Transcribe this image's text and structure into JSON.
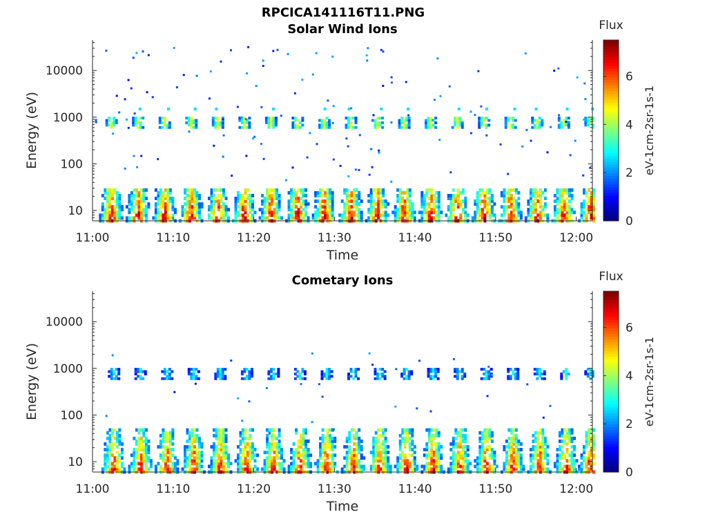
{
  "figure_title": "RPCICA141116T11.PNG",
  "chart_data": [
    {
      "type": "heatmap",
      "title": "Solar Wind Ions",
      "xlabel": "Time",
      "ylabel": "Energy (eV)",
      "x_ticks": [
        "11:00",
        "11:10",
        "11:20",
        "11:30",
        "11:40",
        "11:50",
        "12:00"
      ],
      "y_ticks": [
        "10",
        "100",
        "1000",
        "10000"
      ],
      "y_scale": "log",
      "ylim": [
        6,
        45000
      ],
      "xlim_minutes": [
        0,
        62
      ],
      "colorbar": {
        "label": "Flux",
        "unit_label": "eV-1cm-2sr-1s-1",
        "ticks": [
          "0",
          "2",
          "4",
          "6"
        ],
        "range": [
          0,
          7.5
        ],
        "colormap": "jet"
      },
      "burst_minutes": [
        2.2,
        5.5,
        8.8,
        12.1,
        15.4,
        18.7,
        22,
        25.3,
        28.6,
        31.9,
        35.2,
        38.5,
        41.8,
        45.1,
        48.4,
        51.7,
        55,
        58.3,
        61.6
      ],
      "features": {
        "band_1000eV_intensity": 4.5,
        "low_energy_max_intensity": 7.2,
        "scattered_high_energy_intensity": 1.0
      }
    },
    {
      "type": "heatmap",
      "title": "Cometary Ions",
      "xlabel": "Time",
      "ylabel": "Energy (eV)",
      "x_ticks": [
        "11:00",
        "11:10",
        "11:20",
        "11:30",
        "11:40",
        "11:50",
        "12:00"
      ],
      "y_ticks": [
        "10",
        "100",
        "1000",
        "10000"
      ],
      "y_scale": "log",
      "ylim": [
        6,
        45000
      ],
      "xlim_minutes": [
        0,
        62
      ],
      "colorbar": {
        "label": "Flux",
        "unit_label": "eV-1cm-2sr-1s-1",
        "ticks": [
          "0",
          "2",
          "4",
          "6"
        ],
        "range": [
          0,
          7.5
        ],
        "colormap": "jet"
      },
      "burst_minutes": [
        2.5,
        5.8,
        9.1,
        12.4,
        15.7,
        19,
        22.3,
        25.6,
        28.9,
        32.2,
        35.5,
        38.8,
        42.1,
        45.4,
        48.7,
        52,
        55.3,
        58.6,
        61.6
      ],
      "features": {
        "band_1000eV_intensity": 2.8,
        "low_energy_max_intensity": 7.0,
        "scattered_high_energy_intensity": 1.0
      }
    }
  ]
}
